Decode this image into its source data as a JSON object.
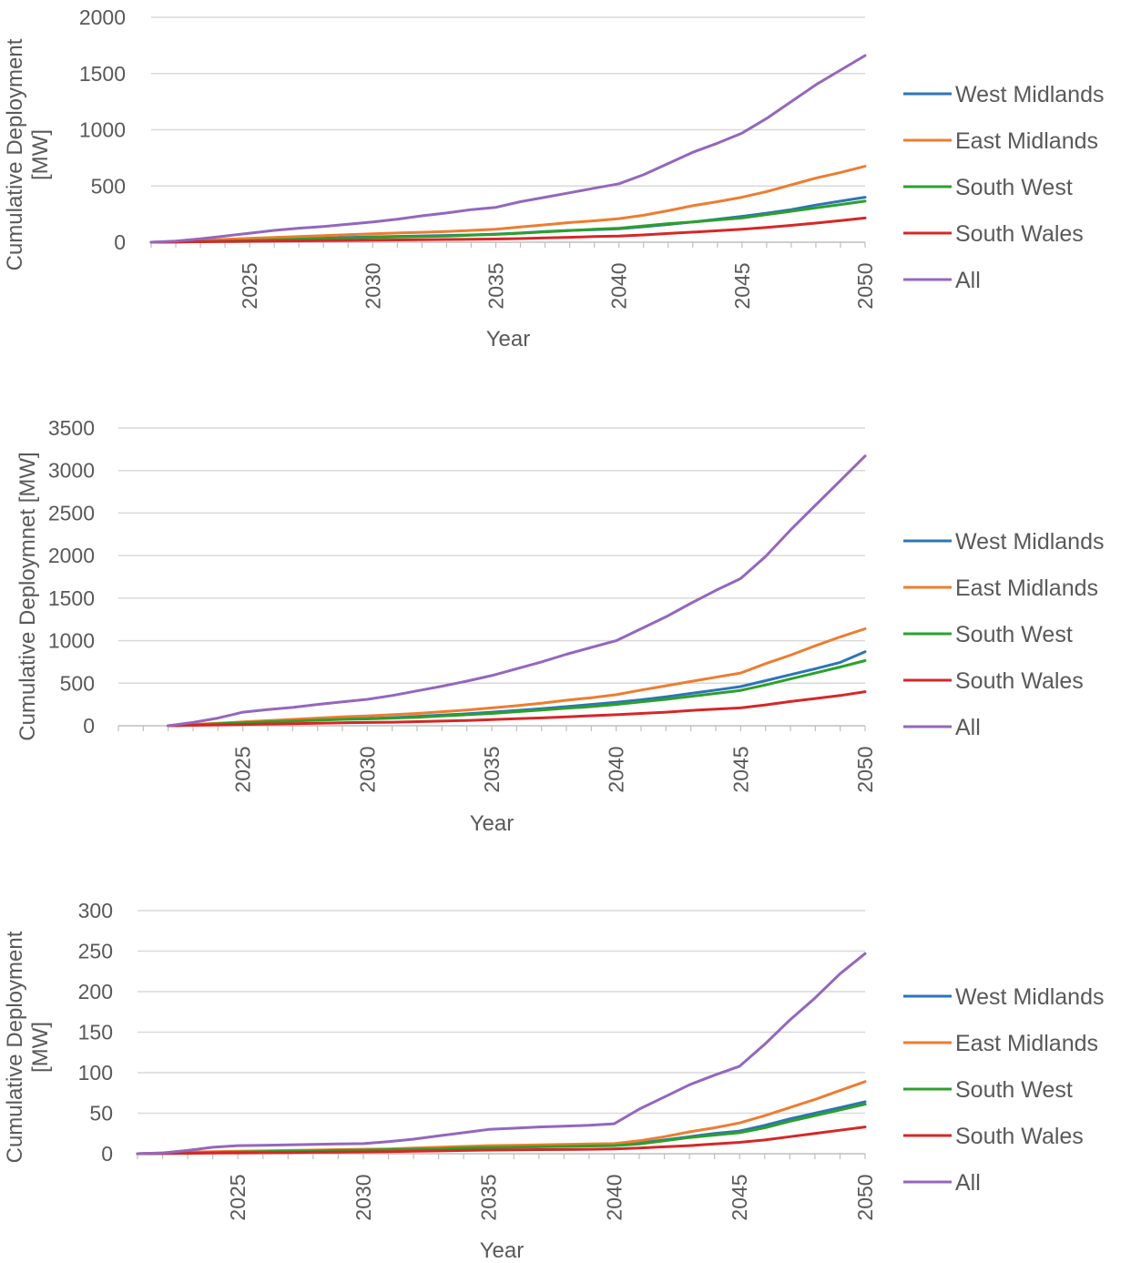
{
  "chart_data": [
    {
      "type": "line",
      "ylabel": [
        "Cumulative Deployment",
        "[MW]"
      ],
      "xlabel": "Year",
      "xlim": [
        2021,
        2050
      ],
      "ylim": [
        0,
        2000
      ],
      "yticks": [
        0,
        500,
        1000,
        1500,
        2000
      ],
      "xticks": [
        2025,
        2030,
        2035,
        2040,
        2045,
        2050
      ],
      "grid": true,
      "legend_position": "right",
      "x": [
        2021,
        2022,
        2023,
        2024,
        2025,
        2026,
        2027,
        2028,
        2029,
        2030,
        2031,
        2032,
        2033,
        2034,
        2035,
        2036,
        2037,
        2038,
        2039,
        2040,
        2041,
        2042,
        2043,
        2044,
        2045,
        2046,
        2047,
        2048,
        2049,
        2050
      ],
      "series": [
        {
          "name": "West Midlands",
          "color": "#2e75b6",
          "values": [
            0,
            3,
            8,
            12,
            18,
            24,
            30,
            36,
            42,
            48,
            52,
            56,
            60,
            65,
            72,
            82,
            95,
            105,
            112,
            120,
            138,
            158,
            180,
            205,
            230,
            258,
            290,
            330,
            365,
            400
          ]
        },
        {
          "name": "East Midlands",
          "color": "#ed7d31",
          "values": [
            0,
            5,
            15,
            25,
            35,
            42,
            50,
            58,
            66,
            75,
            82,
            88,
            95,
            105,
            115,
            135,
            155,
            175,
            190,
            210,
            240,
            280,
            325,
            360,
            400,
            450,
            510,
            570,
            620,
            675
          ]
        },
        {
          "name": "South West",
          "color": "#2ca02c",
          "values": [
            0,
            2,
            6,
            10,
            14,
            20,
            26,
            30,
            36,
            42,
            46,
            50,
            55,
            62,
            70,
            80,
            92,
            104,
            115,
            125,
            145,
            165,
            180,
            198,
            215,
            245,
            275,
            305,
            335,
            365
          ]
        },
        {
          "name": "South Wales",
          "color": "#d62728",
          "values": [
            0,
            2,
            4,
            6,
            8,
            10,
            12,
            14,
            16,
            18,
            20,
            22,
            24,
            26,
            28,
            32,
            38,
            44,
            50,
            55,
            65,
            78,
            90,
            102,
            115,
            132,
            150,
            170,
            192,
            215
          ]
        },
        {
          "name": "All",
          "color": "#9467bd",
          "values": [
            0,
            10,
            30,
            55,
            80,
            105,
            125,
            140,
            160,
            180,
            205,
            235,
            260,
            290,
            310,
            360,
            400,
            440,
            480,
            520,
            600,
            700,
            800,
            880,
            970,
            1100,
            1250,
            1400,
            1530,
            1660
          ]
        }
      ]
    },
    {
      "type": "line",
      "ylabel": [
        "Cumulative Deploymnet [MW]"
      ],
      "xlabel": "Year",
      "xlim": [
        2020,
        2050
      ],
      "ylim": [
        0,
        3500
      ],
      "yticks": [
        0,
        500,
        1000,
        1500,
        2000,
        2500,
        3000,
        3500
      ],
      "xticks": [
        2025,
        2030,
        2035,
        2040,
        2045,
        2050
      ],
      "grid": true,
      "legend_position": "right",
      "x": [
        2022,
        2023,
        2024,
        2025,
        2026,
        2027,
        2028,
        2029,
        2030,
        2031,
        2032,
        2033,
        2034,
        2035,
        2036,
        2037,
        2038,
        2039,
        2040,
        2041,
        2042,
        2043,
        2044,
        2045,
        2046,
        2047,
        2048,
        2049,
        2050
      ],
      "series": [
        {
          "name": "West Midlands",
          "color": "#2e75b6",
          "values": [
            0,
            10,
            25,
            40,
            50,
            60,
            70,
            80,
            85,
            95,
            110,
            125,
            140,
            160,
            180,
            200,
            225,
            250,
            275,
            305,
            340,
            380,
            420,
            460,
            530,
            600,
            670,
            745,
            870
          ]
        },
        {
          "name": "East Midlands",
          "color": "#ed7d31",
          "values": [
            0,
            15,
            30,
            45,
            60,
            75,
            90,
            105,
            115,
            130,
            145,
            165,
            185,
            210,
            235,
            265,
            300,
            330,
            365,
            420,
            470,
            520,
            570,
            620,
            730,
            830,
            940,
            1045,
            1140
          ]
        },
        {
          "name": "South West",
          "color": "#2ca02c",
          "values": [
            0,
            10,
            22,
            35,
            45,
            55,
            65,
            75,
            80,
            90,
            100,
            115,
            130,
            145,
            165,
            185,
            205,
            225,
            250,
            280,
            310,
            345,
            380,
            415,
            480,
            550,
            620,
            690,
            765
          ]
        },
        {
          "name": "South Wales",
          "color": "#d62728",
          "values": [
            0,
            5,
            10,
            15,
            20,
            25,
            30,
            35,
            38,
            42,
            48,
            55,
            62,
            72,
            82,
            92,
            105,
            118,
            130,
            145,
            160,
            180,
            195,
            210,
            245,
            285,
            320,
            355,
            400
          ]
        },
        {
          "name": "All",
          "color": "#9467bd",
          "values": [
            0,
            40,
            90,
            160,
            190,
            215,
            250,
            280,
            310,
            355,
            410,
            465,
            525,
            590,
            670,
            750,
            840,
            920,
            1000,
            1140,
            1280,
            1440,
            1590,
            1730,
            1990,
            2300,
            2590,
            2880,
            3170
          ]
        }
      ]
    },
    {
      "type": "line",
      "ylabel": [
        "Cumulative Deployment",
        "[MW]"
      ],
      "xlabel": "Year",
      "xlim": [
        2021,
        2050
      ],
      "ylim": [
        0,
        300
      ],
      "yticks": [
        0,
        50,
        100,
        150,
        200,
        250,
        300
      ],
      "xticks": [
        2025,
        2030,
        2035,
        2040,
        2045,
        2050
      ],
      "grid": true,
      "legend_position": "right",
      "x": [
        2021,
        2022,
        2023,
        2024,
        2025,
        2026,
        2027,
        2028,
        2029,
        2030,
        2031,
        2032,
        2033,
        2034,
        2035,
        2036,
        2037,
        2038,
        2039,
        2040,
        2041,
        2042,
        2043,
        2044,
        2045,
        2046,
        2047,
        2048,
        2049,
        2050
      ],
      "series": [
        {
          "name": "West Midlands",
          "color": "#2e75b6",
          "values": [
            0,
            0.5,
            1,
            1.5,
            2,
            2.5,
            3,
            3.5,
            4,
            4.5,
            5,
            5.5,
            6,
            7,
            8,
            8.5,
            9,
            9.5,
            10,
            10.5,
            13,
            17,
            21,
            25,
            28,
            35,
            43,
            50,
            57,
            64
          ]
        },
        {
          "name": "East Midlands",
          "color": "#ed7d31",
          "values": [
            0,
            1,
            2,
            2.5,
            3,
            3.5,
            4,
            4.5,
            5,
            5.5,
            6,
            7,
            8,
            9,
            10,
            10.5,
            11,
            11.5,
            12,
            12.5,
            16,
            21,
            27,
            32,
            38,
            47,
            57,
            67,
            78,
            89
          ]
        },
        {
          "name": "South West",
          "color": "#2ca02c",
          "values": [
            0,
            0.5,
            1,
            1.5,
            2,
            2.5,
            3,
            3.5,
            4,
            4.5,
            5,
            5.5,
            6,
            7,
            7.5,
            8,
            8.5,
            9,
            9.5,
            10,
            12,
            16,
            20,
            23,
            26,
            32,
            40,
            47,
            54,
            61
          ]
        },
        {
          "name": "South Wales",
          "color": "#d62728",
          "values": [
            0,
            0.2,
            0.5,
            0.8,
            1,
            1.2,
            1.5,
            1.8,
            2,
            2.2,
            2.5,
            3,
            3.5,
            4,
            4.5,
            4.8,
            5,
            5.2,
            5.5,
            6,
            7,
            8.5,
            10,
            12,
            14,
            17,
            21,
            25,
            29,
            33
          ]
        },
        {
          "name": "All",
          "color": "#9467bd",
          "values": [
            0,
            1,
            4,
            8,
            10,
            10.5,
            11,
            11.5,
            12,
            12.5,
            15,
            18,
            22,
            26,
            30,
            31.5,
            33,
            34,
            35,
            37,
            55,
            70,
            85,
            97,
            108,
            135,
            165,
            192,
            222,
            247
          ]
        }
      ]
    }
  ]
}
